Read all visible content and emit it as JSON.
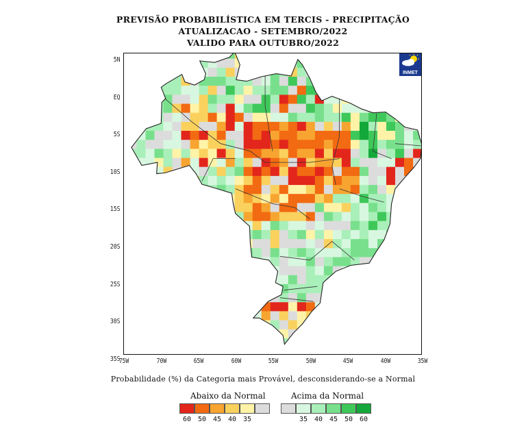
{
  "header": {
    "line1": "PREVISÃO PROBABILÍSTICA EM TERCIS - PRECIPITAÇÃO",
    "line2": "ATUALIZACAO - SETEMBRO/2022",
    "line3": "VALIDO PARA OUTUBRO/2022"
  },
  "axes": {
    "lat_labels": [
      "5N",
      "EQ",
      "5S",
      "10S",
      "15S",
      "20S",
      "25S",
      "30S",
      "35S"
    ],
    "lon_labels": [
      "75W",
      "70W",
      "65W",
      "60W",
      "55W",
      "50W",
      "45W",
      "40W",
      "35W"
    ],
    "lat_range": [
      5,
      -35
    ],
    "lon_range": [
      -75,
      -35
    ]
  },
  "logo": {
    "text": "INMET",
    "icon": "sun-cloud-icon"
  },
  "caption": "Probabilidade (%) da Categoria mais Provável, desconsiderando-se a Normal",
  "legend": {
    "below_title": "Abaixo da Normal",
    "above_title": "Acima da Normal",
    "below": [
      {
        "label": "60",
        "color": "#e3261c"
      },
      {
        "label": "50",
        "color": "#f26a12"
      },
      {
        "label": "45",
        "color": "#f7a530"
      },
      {
        "label": "40",
        "color": "#fbd15e"
      },
      {
        "label": "35",
        "color": "#fff3a8"
      }
    ],
    "neutral_color": "#dcdcdc",
    "above": [
      {
        "label": "35",
        "color": "#d8f7e0"
      },
      {
        "label": "40",
        "color": "#a9efb9"
      },
      {
        "label": "45",
        "color": "#78e08c"
      },
      {
        "label": "50",
        "color": "#3fc85a"
      },
      {
        "label": "60",
        "color": "#14a83a"
      }
    ]
  }
}
